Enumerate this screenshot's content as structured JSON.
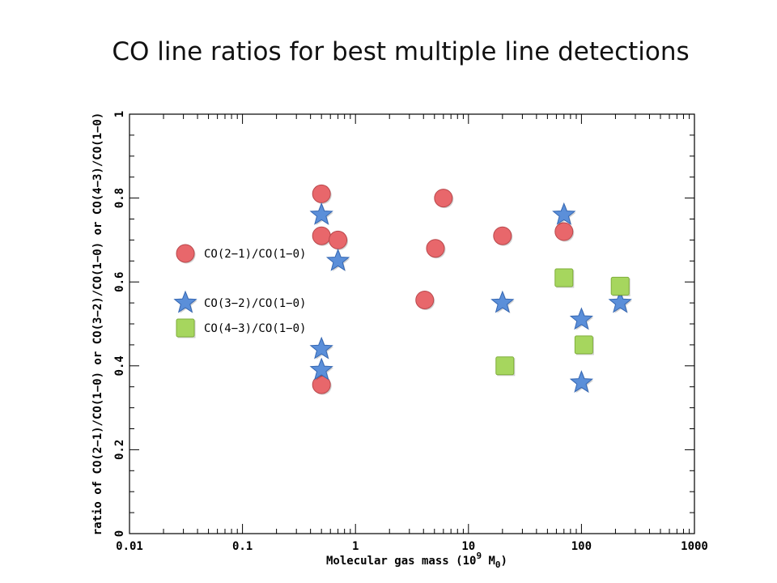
{
  "chart_data": {
    "type": "scatter",
    "title": "CO line ratios for best multiple line detections",
    "xlabel": "Molecular gas mass (10",
    "xlabel_exponent": "9",
    "xlabel_unit": " M",
    "xlabel_unit_sub": "0",
    "xlabel_close": ")",
    "ylabel": "ratio of CO(2−1)/CO(1−0) or CO(3−2)/CO(1−0) or CO(4−3)/CO(1−0)",
    "x_scale": "log",
    "xlim": [
      0.01,
      1000
    ],
    "ylim": [
      0,
      1
    ],
    "x_ticks": [
      {
        "value": 0.01,
        "label": "0.01"
      },
      {
        "value": 0.1,
        "label": "0.1"
      },
      {
        "value": 1,
        "label": "1"
      },
      {
        "value": 10,
        "label": "10"
      },
      {
        "value": 100,
        "label": "100"
      },
      {
        "value": 1000,
        "label": "1000"
      }
    ],
    "y_ticks": [
      {
        "value": 0,
        "label": "0"
      },
      {
        "value": 0.2,
        "label": "0.2"
      },
      {
        "value": 0.4,
        "label": "0.4"
      },
      {
        "value": 0.6,
        "label": "0.6"
      },
      {
        "value": 0.8,
        "label": "0.8"
      },
      {
        "value": 1,
        "label": "1"
      }
    ],
    "grid": false,
    "legend_position": "left-middle",
    "series": [
      {
        "name": "CO(2−1)/CO(1−0)",
        "marker": "circle",
        "color": "#e8676b",
        "points": [
          {
            "x": 0.5,
            "y": 0.81
          },
          {
            "x": 0.5,
            "y": 0.71
          },
          {
            "x": 0.7,
            "y": 0.7
          },
          {
            "x": 0.5,
            "y": 0.355
          },
          {
            "x": 4.1,
            "y": 0.557
          },
          {
            "x": 5.1,
            "y": 0.68
          },
          {
            "x": 6,
            "y": 0.8
          },
          {
            "x": 20,
            "y": 0.71
          },
          {
            "x": 70,
            "y": 0.72
          }
        ]
      },
      {
        "name": "CO(3−2)/CO(1−0)",
        "marker": "star",
        "color": "#5b8fd9",
        "points": [
          {
            "x": 0.5,
            "y": 0.76
          },
          {
            "x": 0.7,
            "y": 0.65
          },
          {
            "x": 0.5,
            "y": 0.44
          },
          {
            "x": 0.5,
            "y": 0.39
          },
          {
            "x": 20,
            "y": 0.55
          },
          {
            "x": 70,
            "y": 0.76
          },
          {
            "x": 100,
            "y": 0.51
          },
          {
            "x": 100,
            "y": 0.36
          },
          {
            "x": 220,
            "y": 0.55
          }
        ]
      },
      {
        "name": "CO(4−3)/CO(1−0)",
        "marker": "square",
        "color": "#a6d65e",
        "points": [
          {
            "x": 21,
            "y": 0.4
          },
          {
            "x": 70,
            "y": 0.61
          },
          {
            "x": 105,
            "y": 0.45
          },
          {
            "x": 220,
            "y": 0.59
          }
        ]
      }
    ]
  }
}
